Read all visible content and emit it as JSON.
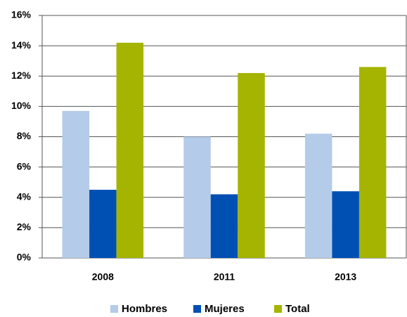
{
  "chart_data": {
    "type": "bar",
    "categories": [
      "2008",
      "2011",
      "2013"
    ],
    "series": [
      {
        "name": "Hombres",
        "color": "#b4cbe9",
        "values": [
          9.7,
          8.0,
          8.2
        ]
      },
      {
        "name": "Mujeres",
        "color": "#0050b4",
        "values": [
          4.5,
          4.2,
          4.4
        ]
      },
      {
        "name": "Total",
        "color": "#a5b400",
        "values": [
          14.2,
          12.2,
          12.6
        ]
      }
    ],
    "ylim": [
      0,
      16
    ],
    "yticks": [
      {
        "value": 0,
        "label": "0%"
      },
      {
        "value": 2,
        "label": "2%"
      },
      {
        "value": 4,
        "label": "4%"
      },
      {
        "value": 6,
        "label": "6%"
      },
      {
        "value": 8,
        "label": "8%"
      },
      {
        "value": 10,
        "label": "10%"
      },
      {
        "value": 12,
        "label": "12%"
      },
      {
        "value": 14,
        "label": "14%"
      },
      {
        "value": 16,
        "label": "16%"
      }
    ],
    "grid": true,
    "legend": "bottom"
  }
}
